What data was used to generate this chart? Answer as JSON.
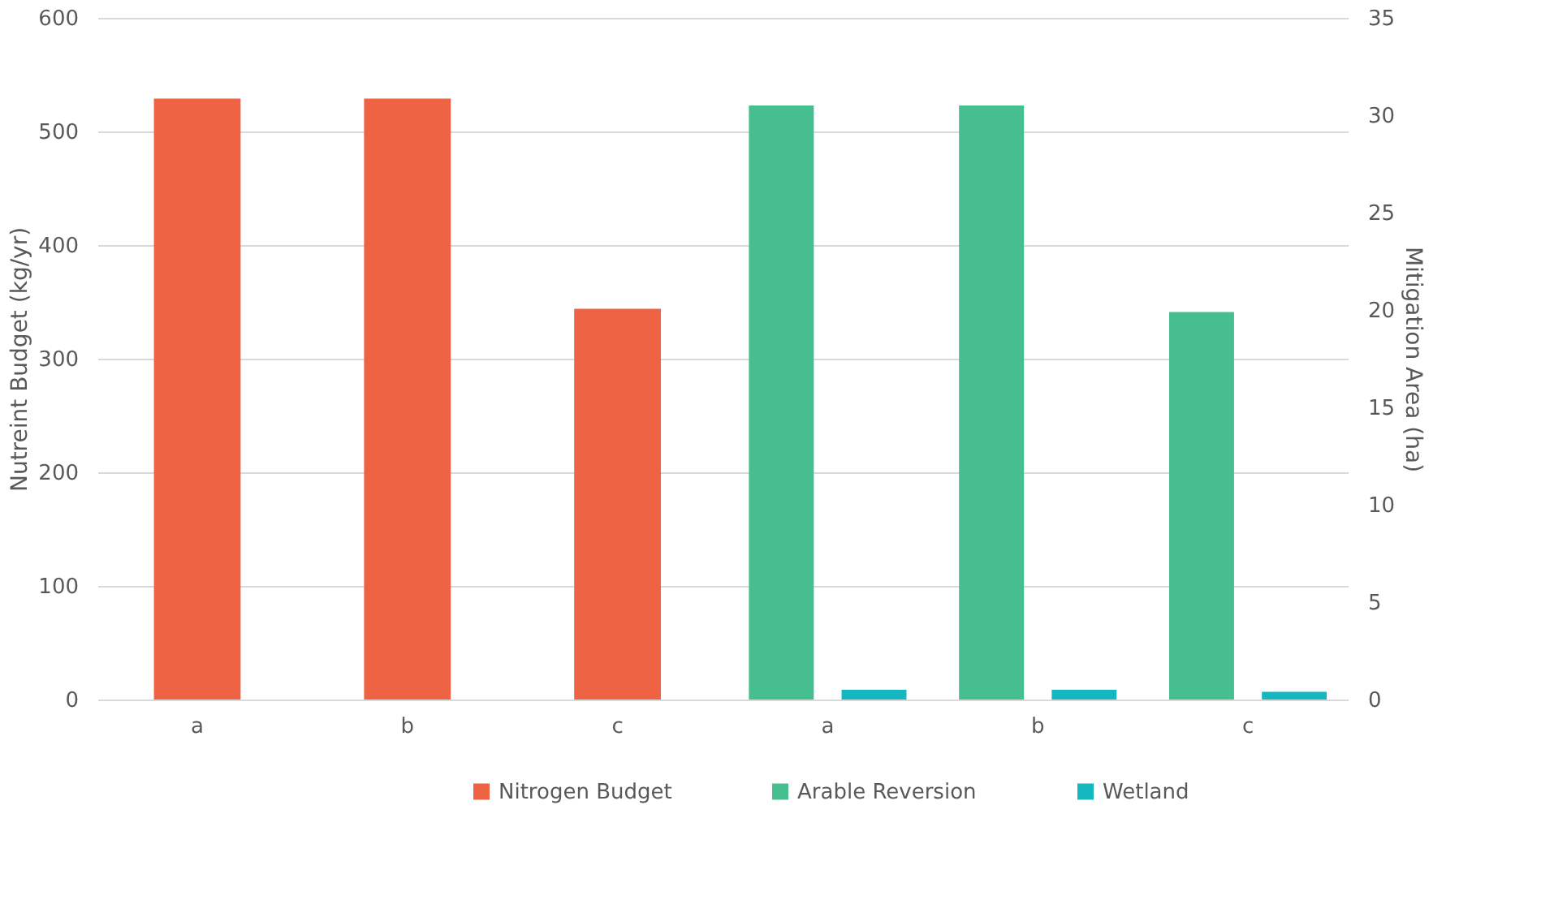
{
  "chart_data": {
    "type": "bar",
    "categories": [
      "a",
      "b",
      "c",
      "a",
      "b",
      "c"
    ],
    "ylabel": "Nutreint Budget (kg/yr)",
    "y2label": "Mitigation Area (ha)",
    "ylim": [
      0,
      600
    ],
    "yticks": [
      0,
      100,
      200,
      300,
      400,
      500,
      600
    ],
    "y2lim": [
      0,
      35
    ],
    "y2ticks": [
      0,
      5,
      10,
      15,
      20,
      25,
      30,
      35
    ],
    "grid": "y",
    "legend": "bottom",
    "series": [
      {
        "name": "Nitrogen Budget",
        "color": "#ee6344",
        "values": [
          529,
          529,
          344,
          null,
          null,
          null
        ]
      },
      {
        "name": "Arable Reversion",
        "color": "#47be90",
        "values": [
          null,
          null,
          null,
          30.5,
          30.5,
          19.9
        ],
        "axis": "y2"
      },
      {
        "name": "Wetland",
        "color": "#14b7c0",
        "values": [
          null,
          null,
          null,
          0.5,
          0.5,
          0.4
        ],
        "axis": "y2"
      }
    ]
  }
}
